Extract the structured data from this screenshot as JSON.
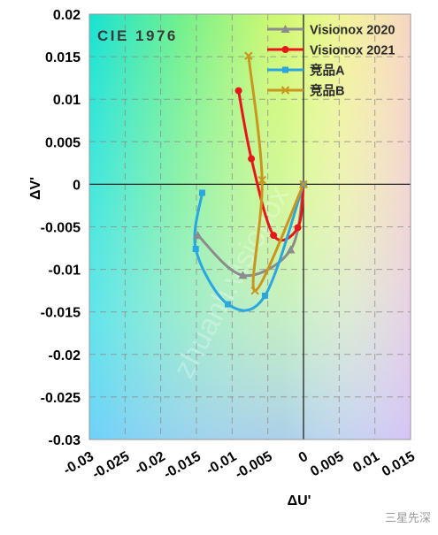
{
  "chart_data": {
    "type": "line",
    "title": "",
    "plot_label": "CIE 1976",
    "xlabel": "ΔU'",
    "ylabel": "ΔV'",
    "xlim": [
      -0.03,
      0.015
    ],
    "ylim": [
      -0.03,
      0.02
    ],
    "x_ticks": [
      "-0.03",
      "-0.025",
      "-0.02",
      "-0.015",
      "-0.01",
      "-0.005",
      "0",
      "0.005",
      "0.01",
      "0.015"
    ],
    "x_tick_values": [
      -0.03,
      -0.025,
      -0.02,
      -0.015,
      -0.01,
      -0.005,
      0,
      0.005,
      0.01,
      0.015
    ],
    "y_ticks": [
      "0.02",
      "0.015",
      "0.01",
      "0.005",
      "0",
      "-0.005",
      "-0.01",
      "-0.015",
      "-0.02",
      "-0.025",
      "-0.03"
    ],
    "y_tick_values": [
      0.02,
      0.015,
      0.01,
      0.005,
      0,
      -0.005,
      -0.01,
      -0.015,
      -0.02,
      -0.025,
      -0.03
    ],
    "grid": true,
    "background": "CIE 1976 chromaticity color gradient",
    "legend_position": "top-right",
    "series": [
      {
        "name": "Visionox 2020",
        "color": "#8c8c8c",
        "marker": "triangle",
        "points": [
          [
            -0.0148,
            -0.006
          ],
          [
            -0.0085,
            -0.0107
          ],
          [
            -0.0018,
            -0.0077
          ],
          [
            0,
            0
          ]
        ]
      },
      {
        "name": "Visionox 2021",
        "color": "#e8161b",
        "marker": "circle",
        "points": [
          [
            -0.0091,
            0.011
          ],
          [
            -0.0073,
            0.003
          ],
          [
            -0.0042,
            -0.006
          ],
          [
            -0.0008,
            -0.0051
          ],
          [
            0,
            0
          ]
        ]
      },
      {
        "name": "竞品A",
        "color": "#2aa6e0",
        "marker": "square",
        "points": [
          [
            -0.0142,
            -0.001
          ],
          [
            -0.0151,
            -0.0076
          ],
          [
            -0.0106,
            -0.0141
          ],
          [
            -0.0054,
            -0.0131
          ],
          [
            0,
            0
          ]
        ]
      },
      {
        "name": "竞品B",
        "color": "#c9961e",
        "marker": "x",
        "points": [
          [
            -0.0077,
            0.0151
          ],
          [
            -0.0058,
            0.0005
          ],
          [
            -0.0068,
            -0.0125
          ],
          [
            0,
            0
          ]
        ]
      }
    ]
  },
  "watermark_text": "zhuanli.visionox",
  "corner_mark": "三星先深"
}
